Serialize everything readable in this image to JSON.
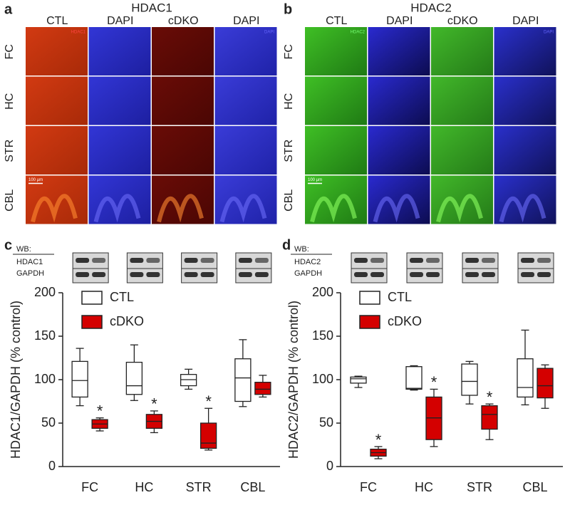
{
  "image_panels": [
    {
      "letter": "a",
      "title": "HDAC1",
      "columns": [
        "CTL",
        "DAPI",
        "cDKO",
        "DAPI"
      ],
      "rows": [
        "FC",
        "HC",
        "STR",
        "CBL"
      ],
      "stain_label": "HDAC1",
      "dapi_label": "DAPI",
      "scale_bar": "100 µm"
    },
    {
      "letter": "b",
      "title": "HDAC2",
      "columns": [
        "CTL",
        "DAPI",
        "cDKO",
        "DAPI"
      ],
      "rows": [
        "FC",
        "HC",
        "STR",
        "CBL"
      ],
      "stain_label": "HDAC2",
      "dapi_label": "DAPI",
      "scale_bar": "100 µm"
    }
  ],
  "chart_data": [
    {
      "type": "box",
      "letter": "c",
      "blot": {
        "header": "WB:",
        "rows": [
          "HDAC1",
          "GAPDH"
        ]
      },
      "ylabel": "HDAC1/GAPDH (% control)",
      "ylim": [
        0,
        200
      ],
      "yticks": [
        0,
        50,
        100,
        150,
        200
      ],
      "categories": [
        "FC",
        "HC",
        "STR",
        "CBL"
      ],
      "significance": [
        "*",
        "*",
        "*",
        null
      ],
      "series": [
        {
          "name": "CTL",
          "color": "#ffffff",
          "values": [
            {
              "min": 70,
              "q1": 80,
              "median": 99,
              "q3": 121,
              "max": 136
            },
            {
              "min": 76,
              "q1": 83,
              "median": 93,
              "q3": 120,
              "max": 140
            },
            {
              "min": 89,
              "q1": 93,
              "median": 100,
              "q3": 106,
              "max": 112
            },
            {
              "min": 69,
              "q1": 75,
              "median": 102,
              "q3": 124,
              "max": 146
            }
          ]
        },
        {
          "name": "cDKO",
          "color": "#d40000",
          "values": [
            {
              "min": 41,
              "q1": 44,
              "median": 49,
              "q3": 54,
              "max": 56
            },
            {
              "min": 39,
              "q1": 44,
              "median": 52,
              "q3": 60,
              "max": 64
            },
            {
              "min": 19,
              "q1": 21,
              "median": 27,
              "q3": 50,
              "max": 67
            },
            {
              "min": 80,
              "q1": 83,
              "median": 89,
              "q3": 97,
              "max": 105
            }
          ]
        }
      ]
    },
    {
      "type": "box",
      "letter": "d",
      "blot": {
        "header": "WB:",
        "rows": [
          "HDAC2",
          "GAPDH"
        ]
      },
      "ylabel": "HDAC2/GAPDH (% control)",
      "ylim": [
        0,
        200
      ],
      "yticks": [
        0,
        50,
        100,
        150,
        200
      ],
      "categories": [
        "FC",
        "HC",
        "STR",
        "CBL"
      ],
      "significance": [
        "*",
        "*",
        "*",
        null
      ],
      "series": [
        {
          "name": "CTL",
          "color": "#ffffff",
          "values": [
            {
              "min": 91,
              "q1": 96,
              "median": 101,
              "q3": 103,
              "max": 104
            },
            {
              "min": 88,
              "q1": 89,
              "median": 90,
              "q3": 115,
              "max": 116
            },
            {
              "min": 72,
              "q1": 82,
              "median": 98,
              "q3": 118,
              "max": 121
            },
            {
              "min": 71,
              "q1": 80,
              "median": 91,
              "q3": 124,
              "max": 157
            }
          ]
        },
        {
          "name": "cDKO",
          "color": "#d40000",
          "values": [
            {
              "min": 9,
              "q1": 12,
              "median": 16,
              "q3": 20,
              "max": 23
            },
            {
              "min": 23,
              "q1": 31,
              "median": 56,
              "q3": 80,
              "max": 89
            },
            {
              "min": 31,
              "q1": 43,
              "median": 60,
              "q3": 70,
              "max": 72
            },
            {
              "min": 67,
              "q1": 79,
              "median": 93,
              "q3": 113,
              "max": 117
            }
          ]
        }
      ]
    }
  ]
}
